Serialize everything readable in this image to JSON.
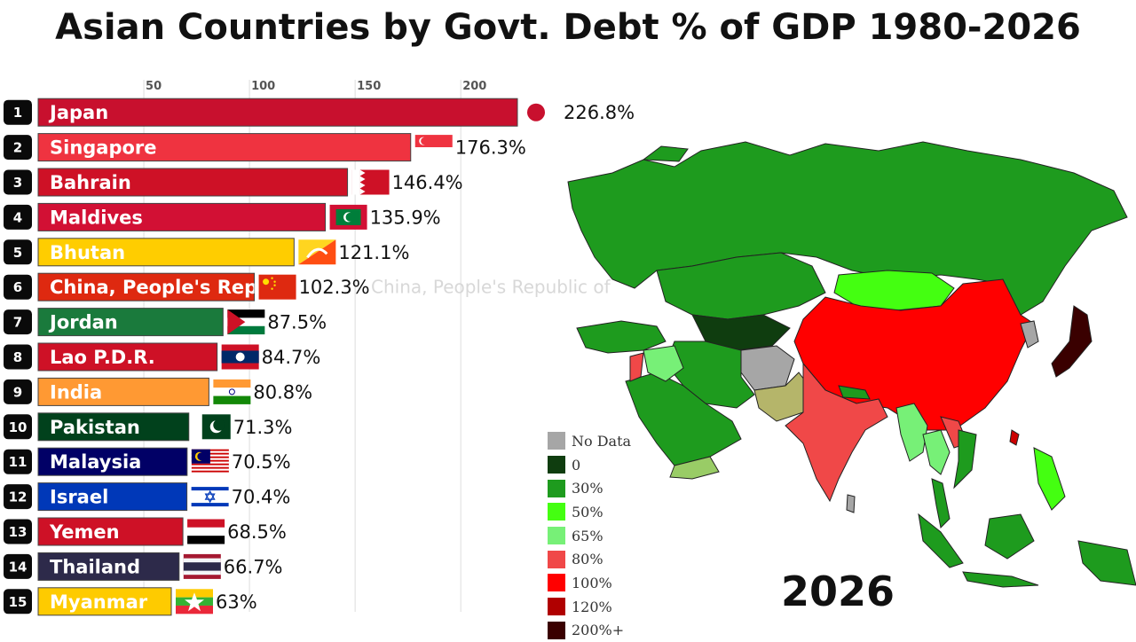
{
  "title": "Asian Countries by Govt. Debt % of GDP 1980-2026",
  "year": "2026",
  "chart_data": {
    "type": "bar",
    "orientation": "horizontal",
    "title": "Asian Countries by Govt. Debt % of GDP 1980-2026",
    "x_ticks": [
      50,
      100,
      150,
      200
    ],
    "xlim": [
      0,
      226.8
    ],
    "grid": true,
    "bars": [
      {
        "rank": "1",
        "name": "Japan",
        "value": 226.8,
        "value_label": "226.8%",
        "color": "#c8102e",
        "flag": "japan-flag"
      },
      {
        "rank": "2",
        "name": "Singapore",
        "value": 176.3,
        "value_label": "176.3%",
        "color": "#ef3340",
        "flag": "singapore-flag"
      },
      {
        "rank": "3",
        "name": "Bahrain",
        "value": 146.4,
        "value_label": "146.4%",
        "color": "#ce1126",
        "flag": "bahrain-flag"
      },
      {
        "rank": "4",
        "name": "Maldives",
        "value": 135.9,
        "value_label": "135.9%",
        "color": "#d21034",
        "flag": "maldives-flag"
      },
      {
        "rank": "5",
        "name": "Bhutan",
        "value": 121.1,
        "value_label": "121.1%",
        "color": "#ffcd00",
        "flag": "bhutan-flag"
      },
      {
        "rank": "6",
        "name": "China, People's Republic of",
        "value": 102.3,
        "value_label": "102.3%",
        "color": "#de2910",
        "flag": "china-flag"
      },
      {
        "rank": "7",
        "name": "Jordan",
        "value": 87.5,
        "value_label": "87.5%",
        "color": "#1a7a3c",
        "flag": "jordan-flag"
      },
      {
        "rank": "8",
        "name": "Lao P.D.R.",
        "value": 84.7,
        "value_label": "84.7%",
        "color": "#ce1126",
        "flag": "laos-flag"
      },
      {
        "rank": "9",
        "name": "India",
        "value": 80.8,
        "value_label": "80.8%",
        "color": "#ff9933",
        "flag": "india-flag"
      },
      {
        "rank": "10",
        "name": "Pakistan",
        "value": 71.3,
        "value_label": "71.3%",
        "color": "#01411c",
        "flag": "pakistan-flag"
      },
      {
        "rank": "11",
        "name": "Malaysia",
        "value": 70.5,
        "value_label": "70.5%",
        "color": "#010066",
        "flag": "malaysia-flag"
      },
      {
        "rank": "12",
        "name": "Israel",
        "value": 70.4,
        "value_label": "70.4%",
        "color": "#0038b8",
        "flag": "israel-flag"
      },
      {
        "rank": "13",
        "name": "Yemen",
        "value": 68.5,
        "value_label": "68.5%",
        "color": "#ce1126",
        "flag": "yemen-flag"
      },
      {
        "rank": "14",
        "name": "Thailand",
        "value": 66.7,
        "value_label": "66.7%",
        "color": "#2d2a4a",
        "flag": "thailand-flag"
      },
      {
        "rank": "15",
        "name": "Myanmar",
        "value": 63,
        "value_label": "63%",
        "color": "#fecb00",
        "flag": "myanmar-flag"
      }
    ],
    "ghost_label": "China, People's Republic of"
  },
  "legend": {
    "items": [
      {
        "label": "No Data",
        "color": "#a6a6a6"
      },
      {
        "label": "0",
        "color": "#0f3d0f"
      },
      {
        "label": "30%",
        "color": "#1e9b1e"
      },
      {
        "label": "50%",
        "color": "#44ff11"
      },
      {
        "label": "65%",
        "color": "#77f077"
      },
      {
        "label": "80%",
        "color": "#f04848"
      },
      {
        "label": "100%",
        "color": "#ff0000"
      },
      {
        "label": "120%",
        "color": "#b00000"
      },
      {
        "label": "200%+",
        "color": "#3a0000"
      }
    ]
  }
}
